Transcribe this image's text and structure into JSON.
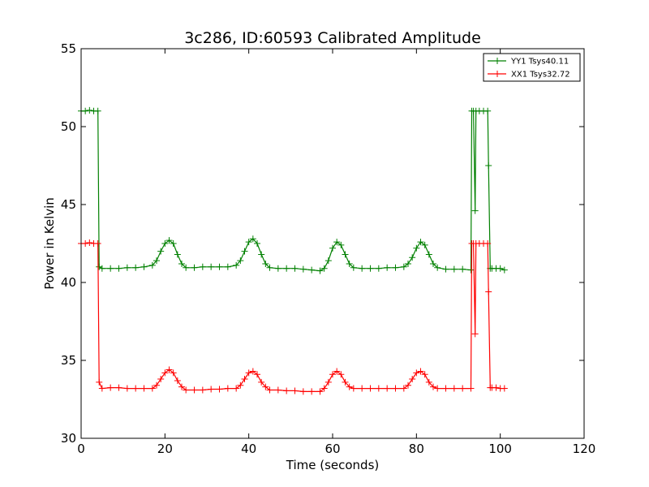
{
  "chart_data": {
    "type": "line",
    "title": "3c286, ID:60593 Calibrated Amplitude",
    "xlabel": "Time (seconds)",
    "ylabel": "Power in Kelvin",
    "xlim": [
      0,
      120
    ],
    "ylim": [
      30,
      55
    ],
    "xticks": [
      0,
      20,
      40,
      60,
      80,
      100,
      120
    ],
    "yticks": [
      30,
      35,
      40,
      45,
      50,
      55
    ],
    "grid": false,
    "legend_position": "top-right",
    "marker": "+",
    "series": [
      {
        "name": "YY1 Tsys40.11",
        "color": "#008000",
        "x": [
          0,
          1,
          2,
          3,
          4,
          4.3,
          5,
          7,
          9,
          11,
          13,
          15,
          17,
          18,
          19,
          20,
          21,
          22,
          23,
          24,
          25,
          27,
          29,
          31,
          33,
          35,
          37,
          38,
          39,
          40,
          41,
          42,
          43,
          44,
          45,
          47,
          49,
          51,
          53,
          55,
          57,
          58,
          59,
          60,
          61,
          62,
          63,
          64,
          65,
          67,
          69,
          71,
          73,
          75,
          77,
          78,
          79,
          80,
          81,
          82,
          83,
          84,
          85,
          87,
          89,
          91,
          93,
          93.2,
          93.6,
          94,
          94.2,
          95,
          96,
          97,
          97.2,
          97.6,
          98,
          99,
          100,
          101
        ],
        "y": [
          51,
          51,
          51.05,
          51,
          51,
          41,
          40.9,
          40.9,
          40.9,
          40.95,
          40.95,
          41,
          41.1,
          41.4,
          42,
          42.5,
          42.7,
          42.5,
          41.8,
          41.2,
          40.95,
          40.95,
          41,
          41,
          41,
          41,
          41.1,
          41.4,
          42,
          42.6,
          42.8,
          42.5,
          41.8,
          41.2,
          40.95,
          40.9,
          40.9,
          40.9,
          40.85,
          40.8,
          40.75,
          40.9,
          41.4,
          42.2,
          42.6,
          42.4,
          41.8,
          41.2,
          40.95,
          40.9,
          40.9,
          40.9,
          40.95,
          40.95,
          41,
          41.2,
          41.6,
          42.2,
          42.6,
          42.4,
          41.8,
          41.2,
          40.95,
          40.85,
          40.85,
          40.85,
          40.8,
          51,
          51,
          44.6,
          51,
          51,
          51,
          51,
          47.5,
          40.9,
          40.9,
          40.9,
          40.9,
          40.8
        ]
      },
      {
        "name": "XX1 Tsys32.72",
        "color": "#ff0000",
        "x": [
          0,
          1,
          2,
          3,
          4,
          4.3,
          5,
          7,
          9,
          11,
          13,
          15,
          17,
          18,
          19,
          20,
          21,
          22,
          23,
          24,
          25,
          27,
          29,
          31,
          33,
          35,
          37,
          38,
          39,
          40,
          41,
          42,
          43,
          44,
          45,
          47,
          49,
          51,
          53,
          55,
          57,
          58,
          59,
          60,
          61,
          62,
          63,
          64,
          65,
          67,
          69,
          71,
          73,
          75,
          77,
          78,
          79,
          80,
          81,
          82,
          83,
          84,
          85,
          87,
          89,
          91,
          93,
          93.2,
          93.6,
          94,
          94.2,
          95,
          96,
          97,
          97.2,
          97.6,
          98,
          99,
          100,
          101
        ],
        "y": [
          42.5,
          42.5,
          42.55,
          42.5,
          42.5,
          33.6,
          33.2,
          33.25,
          33.25,
          33.2,
          33.2,
          33.2,
          33.2,
          33.4,
          33.8,
          34.2,
          34.4,
          34.2,
          33.7,
          33.3,
          33.1,
          33.1,
          33.1,
          33.15,
          33.15,
          33.2,
          33.2,
          33.4,
          33.8,
          34.2,
          34.3,
          34.1,
          33.6,
          33.3,
          33.1,
          33.1,
          33.05,
          33.05,
          33,
          33,
          33,
          33.2,
          33.6,
          34.1,
          34.3,
          34.1,
          33.6,
          33.3,
          33.2,
          33.2,
          33.2,
          33.2,
          33.2,
          33.2,
          33.2,
          33.4,
          33.8,
          34.2,
          34.3,
          34.1,
          33.6,
          33.3,
          33.2,
          33.2,
          33.2,
          33.2,
          33.2,
          42.5,
          42.5,
          36.7,
          42.5,
          42.5,
          42.5,
          42.5,
          39.4,
          33.25,
          33.25,
          33.25,
          33.2,
          33.2
        ]
      }
    ]
  }
}
